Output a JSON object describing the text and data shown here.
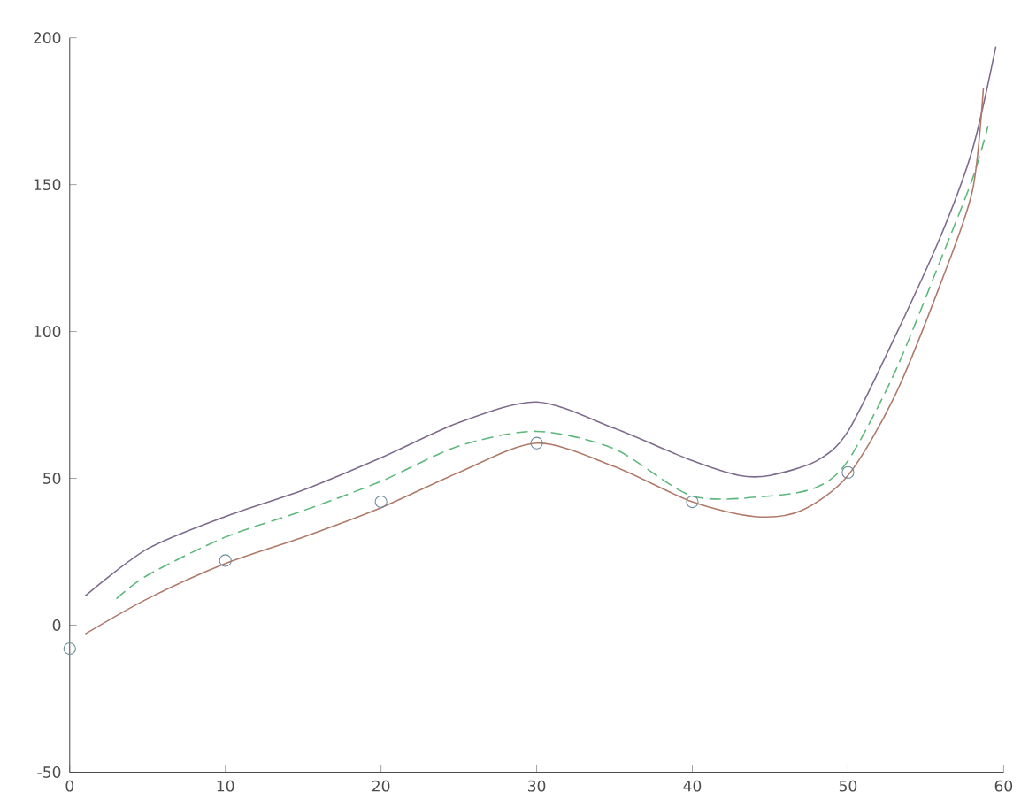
{
  "chart_data": {
    "type": "line",
    "xlim": [
      0,
      60
    ],
    "ylim": [
      -50,
      200
    ],
    "xticks": [
      0,
      10,
      20,
      30,
      40,
      50,
      60
    ],
    "yticks": [
      -50,
      0,
      50,
      100,
      150,
      200
    ],
    "grid": false,
    "series": [
      {
        "color": "#7d6a8c",
        "line_style": "solid",
        "marker": "none",
        "x": [
          1,
          5,
          10,
          15,
          20,
          25,
          30,
          35,
          40,
          43,
          45,
          48,
          50,
          53,
          56,
          58,
          59.5
        ],
        "values": [
          10,
          26,
          37,
          46,
          57,
          69,
          76,
          67,
          56,
          51,
          51,
          56,
          66,
          98,
          133,
          162,
          197
        ]
      },
      {
        "color": "#5cb87a",
        "line_style": "dashed",
        "marker": "none",
        "x": [
          3,
          5,
          10,
          15,
          20,
          25,
          30,
          35,
          40,
          45,
          48,
          50,
          53,
          56,
          58,
          59
        ],
        "values": [
          9,
          17,
          30,
          39,
          49,
          61,
          66,
          60,
          44,
          44,
          47,
          56,
          86,
          125,
          152,
          170
        ]
      },
      {
        "color": "#b07a6a",
        "line_style": "solid",
        "marker": "none",
        "x": [
          1,
          5,
          10,
          15,
          20,
          25,
          30,
          35,
          40,
          44,
          47,
          50,
          53,
          56,
          58,
          58.7
        ],
        "values": [
          -3,
          9,
          21,
          30,
          40,
          52,
          62,
          54,
          42,
          37,
          39,
          51,
          78,
          117,
          148,
          183
        ]
      },
      {
        "type": "scatter",
        "color": "#6a8a9a",
        "marker": "circle",
        "x": [
          0,
          10,
          20,
          30,
          40,
          50
        ],
        "values": [
          -8,
          22,
          42,
          62,
          42,
          52
        ]
      }
    ]
  }
}
